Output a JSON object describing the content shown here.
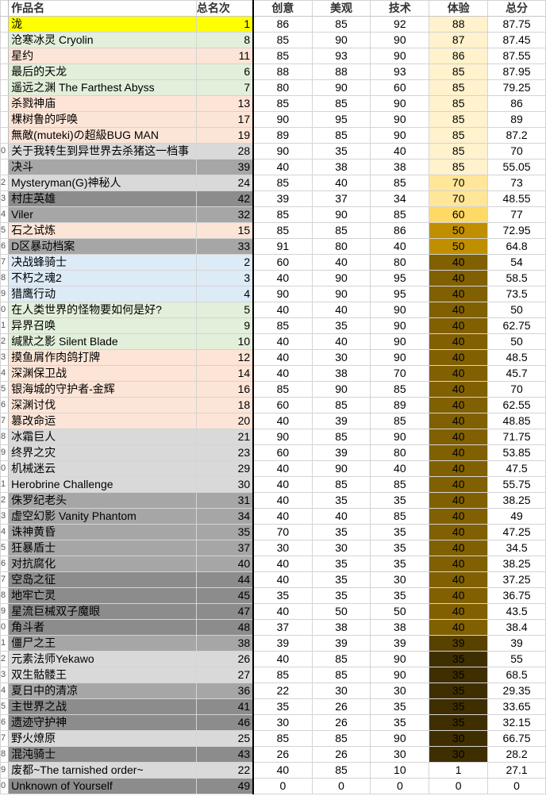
{
  "headers": {
    "name": "作品名",
    "rank": "总名次",
    "creativity": "创意",
    "beauty": "美观",
    "tech": "技术",
    "experience": "体验",
    "total": "总分"
  },
  "colors": {
    "yellow": "#ffff00",
    "green": "#e2efda",
    "peach": "#fce4d6",
    "blue": "#ddebf7",
    "gray1": "#d9d9d9",
    "gray2": "#bfbfbf",
    "gray3": "#a6a6a6",
    "gray4": "#8c8c8c",
    "exp_88": "#fff2cc",
    "exp_87": "#fff2cc",
    "exp_86": "#fff2cc",
    "exp_85": "#fff2cc",
    "exp_70": "#ffe699",
    "exp_60": "#ffd966",
    "exp_50": "#bf8f00",
    "exp_40": "#806000",
    "exp_39": "#594200",
    "exp_35": "#3f2f00",
    "exp_30": "#3f2f00",
    "exp_1": "#ffffff",
    "exp_0": "#ffffff"
  },
  "rows": [
    {
      "gut": "",
      "name": "泷",
      "rank": "1",
      "c": "86",
      "b": "85",
      "t": "92",
      "e": "88",
      "total": "87.75",
      "bg": "yellow"
    },
    {
      "gut": "",
      "name": "沧寒冰灵 Cryolin",
      "rank": "8",
      "c": "85",
      "b": "90",
      "t": "90",
      "e": "87",
      "total": "87.45",
      "bg": "green"
    },
    {
      "gut": "",
      "name": "星约",
      "rank": "11",
      "c": "85",
      "b": "93",
      "t": "90",
      "e": "86",
      "total": "87.55",
      "bg": "peach"
    },
    {
      "gut": "",
      "name": "最后的天龙",
      "rank": "6",
      "c": "88",
      "b": "88",
      "t": "93",
      "e": "85",
      "total": "87.95",
      "bg": "green"
    },
    {
      "gut": "",
      "name": "遥远之渊 The Farthest Abyss",
      "rank": "7",
      "c": "80",
      "b": "90",
      "t": "60",
      "e": "85",
      "total": "79.25",
      "bg": "green"
    },
    {
      "gut": "",
      "name": "杀戮神庙",
      "rank": "13",
      "c": "85",
      "b": "85",
      "t": "90",
      "e": "85",
      "total": "86",
      "bg": "peach"
    },
    {
      "gut": "",
      "name": "棵树鲁的呼唤",
      "rank": "17",
      "c": "90",
      "b": "95",
      "t": "90",
      "e": "85",
      "total": "89",
      "bg": "peach"
    },
    {
      "gut": "",
      "name": "無敵(muteki)の超級BUG MAN",
      "rank": "19",
      "c": "89",
      "b": "85",
      "t": "90",
      "e": "85",
      "total": "87.2",
      "bg": "peach"
    },
    {
      "gut": "0",
      "name": "关于我转生到异世界去杀猪这一档事",
      "rank": "28",
      "c": "90",
      "b": "35",
      "t": "40",
      "e": "85",
      "total": "70",
      "bg": "gray1"
    },
    {
      "gut": "",
      "name": "决斗",
      "rank": "39",
      "c": "40",
      "b": "38",
      "t": "38",
      "e": "85",
      "total": "55.05",
      "bg": "gray3"
    },
    {
      "gut": "2",
      "name": "Mysteryman(G)神秘人",
      "rank": "24",
      "c": "85",
      "b": "40",
      "t": "85",
      "e": "70",
      "total": "73",
      "bg": "gray1"
    },
    {
      "gut": "3",
      "name": "村庄英雄",
      "rank": "42",
      "c": "39",
      "b": "37",
      "t": "34",
      "e": "70",
      "total": "48.55",
      "bg": "gray4"
    },
    {
      "gut": "4",
      "name": "Viler",
      "rank": "32",
      "c": "85",
      "b": "90",
      "t": "85",
      "e": "60",
      "total": "77",
      "bg": "gray3"
    },
    {
      "gut": "5",
      "name": "石之试炼",
      "rank": "15",
      "c": "85",
      "b": "85",
      "t": "86",
      "e": "50",
      "total": "72.95",
      "bg": "peach"
    },
    {
      "gut": "6",
      "name": "D区暴动档案",
      "rank": "33",
      "c": "91",
      "b": "80",
      "t": "40",
      "e": "50",
      "total": "64.8",
      "bg": "gray3"
    },
    {
      "gut": "7",
      "name": "决战蜂骑士",
      "rank": "2",
      "c": "60",
      "b": "40",
      "t": "80",
      "e": "40",
      "total": "54",
      "bg": "blue"
    },
    {
      "gut": "8",
      "name": "不朽之魂2",
      "rank": "3",
      "c": "40",
      "b": "90",
      "t": "95",
      "e": "40",
      "total": "58.5",
      "bg": "blue"
    },
    {
      "gut": "9",
      "name": "猎鹰行动",
      "rank": "4",
      "c": "90",
      "b": "90",
      "t": "95",
      "e": "40",
      "total": "73.5",
      "bg": "blue"
    },
    {
      "gut": "0",
      "name": "在人类世界的怪物要如何是好?",
      "rank": "5",
      "c": "40",
      "b": "40",
      "t": "90",
      "e": "40",
      "total": "50",
      "bg": "green"
    },
    {
      "gut": "1",
      "name": "异界召唤",
      "rank": "9",
      "c": "85",
      "b": "35",
      "t": "90",
      "e": "40",
      "total": "62.75",
      "bg": "green"
    },
    {
      "gut": "2",
      "name": "缄默之影 Silent Blade",
      "rank": "10",
      "c": "40",
      "b": "40",
      "t": "90",
      "e": "40",
      "total": "50",
      "bg": "green"
    },
    {
      "gut": "3",
      "name": "摸鱼屑作肉鸽打牌",
      "rank": "12",
      "c": "40",
      "b": "30",
      "t": "90",
      "e": "40",
      "total": "48.5",
      "bg": "peach"
    },
    {
      "gut": "4",
      "name": "深渊保卫战",
      "rank": "14",
      "c": "40",
      "b": "38",
      "t": "70",
      "e": "40",
      "total": "45.7",
      "bg": "peach"
    },
    {
      "gut": "5",
      "name": "银海城的守护者-金辉",
      "rank": "16",
      "c": "85",
      "b": "90",
      "t": "85",
      "e": "40",
      "total": "70",
      "bg": "peach"
    },
    {
      "gut": "6",
      "name": "深渊讨伐",
      "rank": "18",
      "c": "60",
      "b": "85",
      "t": "89",
      "e": "40",
      "total": "62.55",
      "bg": "peach"
    },
    {
      "gut": "7",
      "name": "篡改命运",
      "rank": "20",
      "c": "40",
      "b": "39",
      "t": "85",
      "e": "40",
      "total": "48.85",
      "bg": "peach"
    },
    {
      "gut": "8",
      "name": "冰霜巨人",
      "rank": "21",
      "c": "90",
      "b": "85",
      "t": "90",
      "e": "40",
      "total": "71.75",
      "bg": "gray1"
    },
    {
      "gut": "9",
      "name": "终界之灾",
      "rank": "23",
      "c": "60",
      "b": "39",
      "t": "80",
      "e": "40",
      "total": "53.85",
      "bg": "gray1"
    },
    {
      "gut": "0",
      "name": "机械迷云",
      "rank": "29",
      "c": "40",
      "b": "90",
      "t": "40",
      "e": "40",
      "total": "47.5",
      "bg": "gray1"
    },
    {
      "gut": "1",
      "name": "Herobrine Challenge",
      "rank": "30",
      "c": "40",
      "b": "85",
      "t": "85",
      "e": "40",
      "total": "55.75",
      "bg": "gray1"
    },
    {
      "gut": "2",
      "name": "侏罗纪老头",
      "rank": "31",
      "c": "40",
      "b": "35",
      "t": "35",
      "e": "40",
      "total": "38.25",
      "bg": "gray3"
    },
    {
      "gut": "3",
      "name": "虚空幻影 Vanity Phantom",
      "rank": "34",
      "c": "40",
      "b": "40",
      "t": "85",
      "e": "40",
      "total": "49",
      "bg": "gray3"
    },
    {
      "gut": "4",
      "name": "诛神黄昏",
      "rank": "35",
      "c": "70",
      "b": "35",
      "t": "35",
      "e": "40",
      "total": "47.25",
      "bg": "gray3"
    },
    {
      "gut": "5",
      "name": "狂暴盾士",
      "rank": "37",
      "c": "30",
      "b": "30",
      "t": "35",
      "e": "40",
      "total": "34.5",
      "bg": "gray3"
    },
    {
      "gut": "6",
      "name": "对抗腐化",
      "rank": "40",
      "c": "40",
      "b": "35",
      "t": "35",
      "e": "40",
      "total": "38.25",
      "bg": "gray3"
    },
    {
      "gut": "7",
      "name": "空岛之征",
      "rank": "44",
      "c": "40",
      "b": "35",
      "t": "30",
      "e": "40",
      "total": "37.25",
      "bg": "gray4"
    },
    {
      "gut": "8",
      "name": "地牢亡灵",
      "rank": "45",
      "c": "35",
      "b": "35",
      "t": "35",
      "e": "40",
      "total": "36.75",
      "bg": "gray4"
    },
    {
      "gut": "9",
      "name": "星流巨械双子魔眼",
      "rank": "47",
      "c": "40",
      "b": "50",
      "t": "50",
      "e": "40",
      "total": "43.5",
      "bg": "gray4"
    },
    {
      "gut": "0",
      "name": "角斗者",
      "rank": "48",
      "c": "37",
      "b": "38",
      "t": "38",
      "e": "40",
      "total": "38.4",
      "bg": "gray4"
    },
    {
      "gut": "1",
      "name": "僵尸之王",
      "rank": "38",
      "c": "39",
      "b": "39",
      "t": "39",
      "e": "39",
      "total": "39",
      "bg": "gray3"
    },
    {
      "gut": "2",
      "name": "元素法师Yekawo",
      "rank": "26",
      "c": "40",
      "b": "85",
      "t": "90",
      "e": "35",
      "total": "55",
      "bg": "gray1"
    },
    {
      "gut": "3",
      "name": "双生骷髅王",
      "rank": "27",
      "c": "85",
      "b": "85",
      "t": "90",
      "e": "35",
      "total": "68.5",
      "bg": "gray1"
    },
    {
      "gut": "4",
      "name": "夏日中的清凉",
      "rank": "36",
      "c": "22",
      "b": "30",
      "t": "30",
      "e": "35",
      "total": "29.35",
      "bg": "gray3"
    },
    {
      "gut": "5",
      "name": "主世界之战",
      "rank": "41",
      "c": "35",
      "b": "26",
      "t": "35",
      "e": "35",
      "total": "33.65",
      "bg": "gray4"
    },
    {
      "gut": "6",
      "name": "遗迹守护神",
      "rank": "46",
      "c": "30",
      "b": "26",
      "t": "35",
      "e": "35",
      "total": "32.15",
      "bg": "gray4"
    },
    {
      "gut": "7",
      "name": "野火燎原",
      "rank": "25",
      "c": "85",
      "b": "85",
      "t": "90",
      "e": "30",
      "total": "66.75",
      "bg": "gray1"
    },
    {
      "gut": "8",
      "name": "混沌骑士",
      "rank": "43",
      "c": "26",
      "b": "26",
      "t": "30",
      "e": "30",
      "total": "28.2",
      "bg": "gray4"
    },
    {
      "gut": "9",
      "name": "废都~The tarnished order~",
      "rank": "22",
      "c": "40",
      "b": "85",
      "t": "10",
      "e": "1",
      "total": "27.1",
      "bg": "gray1"
    },
    {
      "gut": "0",
      "name": "Unknown of Yourself",
      "rank": "49",
      "c": "0",
      "b": "0",
      "t": "0",
      "e": "0",
      "total": "0",
      "bg": "gray4"
    }
  ]
}
